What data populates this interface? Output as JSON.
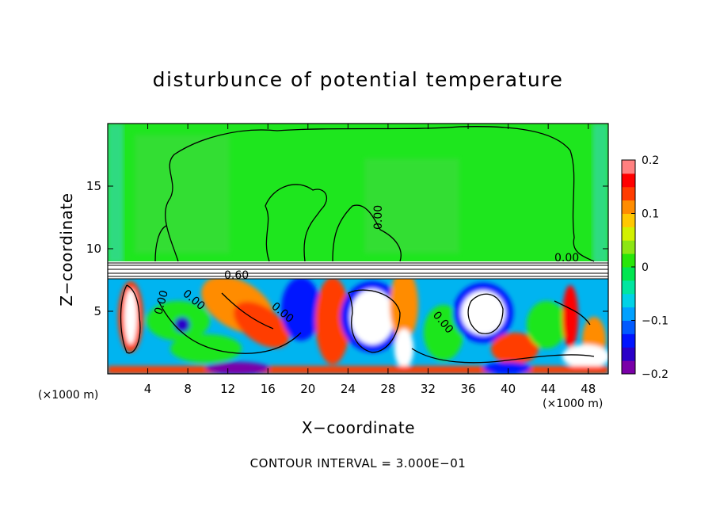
{
  "chart_data": {
    "type": "heatmap",
    "title": "disturbunce of potential temperature",
    "xlabel": "X−coordinate",
    "ylabel": "Z−coordinate",
    "x_unit_left": "(×1000 m)",
    "x_unit_right": "(×1000 m)",
    "footer": "CONTOUR INTERVAL = 3.000E−01",
    "xlim": [
      0,
      50
    ],
    "ylim": [
      0,
      20
    ],
    "xticks": [
      4,
      8,
      12,
      16,
      20,
      24,
      28,
      32,
      36,
      40,
      44,
      48
    ],
    "yticks": [
      5,
      10,
      15
    ],
    "contour_labels": [
      "0.00",
      "0.00",
      "0.00",
      "0.00",
      "0.00",
      "0.60",
      "0.00"
    ],
    "colorbar": {
      "ticks": [
        "0.2",
        "0.1",
        "0",
        "−0.1",
        "−0.2"
      ],
      "range": [
        -0.2,
        0.2
      ],
      "colors": [
        "#7a00a8",
        "#2a00c8",
        "#0014ff",
        "#005aff",
        "#00a0ff",
        "#00d2e6",
        "#00e6a0",
        "#00e650",
        "#28e60a",
        "#8ce614",
        "#d2f000",
        "#ffc800",
        "#ff8c00",
        "#ff3c00",
        "#ff0000",
        "#ff8080"
      ]
    }
  }
}
